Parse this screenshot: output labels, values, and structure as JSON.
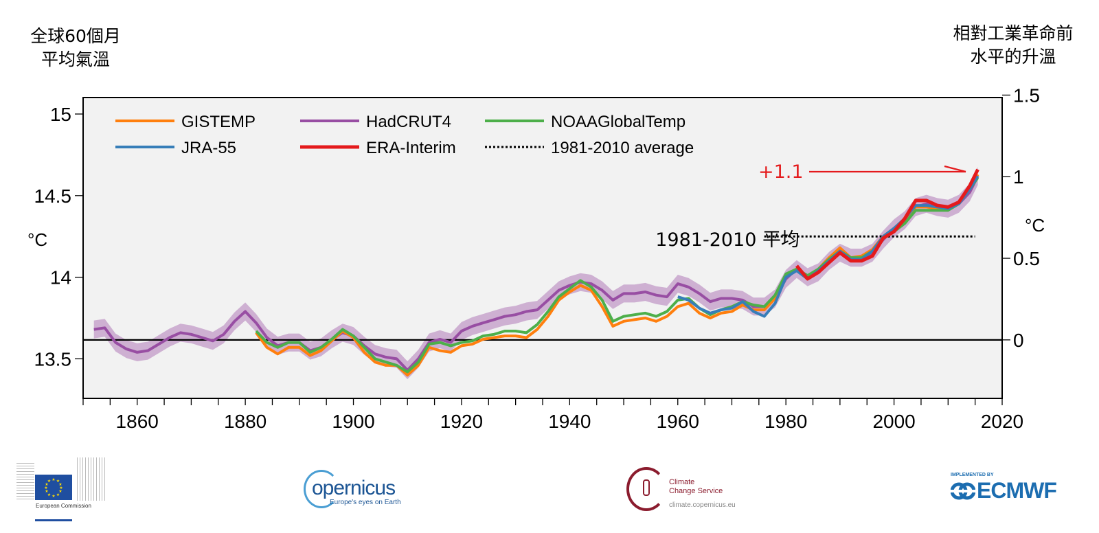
{
  "titles": {
    "left_line1": "全球60個月",
    "left_line2": "平均氣溫",
    "right_line1": "相對工業革命前",
    "right_line2": "水平的升溫"
  },
  "chart_data": {
    "type": "line",
    "title": "",
    "xlabel": "",
    "ylabel_left": "°C",
    "ylabel_right": "°C",
    "xlim": [
      1850,
      2020
    ],
    "ylim_left": [
      13.3,
      15.1
    ],
    "ylim_right_anomaly": [
      -0.3,
      1.5
    ],
    "right_axis_zero_at_absolute": 13.616,
    "x_ticks": [
      1860,
      1880,
      1900,
      1920,
      1940,
      1960,
      1980,
      2000,
      2020
    ],
    "x_minor_step": 5,
    "y_left_ticks": [
      "13.5",
      "14",
      "14.5",
      "15"
    ],
    "y_right_ticks": [
      "0",
      "0.5",
      "1",
      "1.5"
    ],
    "y_left_tick_values": [
      13.5,
      14.0,
      14.5,
      15.0
    ],
    "y_right_tick_values": [
      0,
      0.5,
      1.0,
      1.5
    ],
    "grid": false,
    "background": "#f2f2f2",
    "legend_position": "top-left",
    "legend": [
      {
        "name": "GISTEMP",
        "color": "#ff7f0e",
        "style": "solid"
      },
      {
        "name": "HadCRUT4",
        "color": "#984ea3",
        "style": "solid"
      },
      {
        "name": "NOAAGlobalTemp",
        "color": "#4daf4a",
        "style": "solid"
      },
      {
        "name": "JRA-55",
        "color": "#377eb8",
        "style": "solid"
      },
      {
        "name": "ERA-Interim",
        "color": "#e41a1c",
        "style": "solid"
      },
      {
        "name": "1981-2010 average",
        "color": "#000000",
        "style": "dotted"
      }
    ],
    "annotations": {
      "warming_label": "+1.1",
      "warming_color": "#e41a1c",
      "average_label": "1981-2010 平均",
      "average_value_absolute": 14.25,
      "average_span": [
        1976,
        2015
      ]
    },
    "series": [
      {
        "name": "HadCRUT4",
        "color": "#984ea3",
        "uncertainty": 0.055,
        "x": [
          1852,
          1854,
          1856,
          1858,
          1860,
          1862,
          1864,
          1866,
          1868,
          1870,
          1872,
          1874,
          1876,
          1878,
          1880,
          1882,
          1884,
          1886,
          1888,
          1890,
          1892,
          1894,
          1896,
          1898,
          1900,
          1902,
          1904,
          1906,
          1908,
          1910,
          1912,
          1914,
          1916,
          1918,
          1920,
          1922,
          1924,
          1926,
          1928,
          1930,
          1932,
          1934,
          1936,
          1938,
          1940,
          1942,
          1944,
          1946,
          1948,
          1950,
          1952,
          1954,
          1956,
          1958,
          1960,
          1962,
          1964,
          1966,
          1968,
          1970,
          1972,
          1974,
          1976,
          1978,
          1980,
          1982,
          1984,
          1986,
          1988,
          1990,
          1992,
          1994,
          1996,
          1998,
          2000,
          2002,
          2004,
          2006,
          2008,
          2010,
          2012,
          2014,
          2015.5
        ],
        "values": [
          13.68,
          13.69,
          13.6,
          13.56,
          13.54,
          13.55,
          13.59,
          13.63,
          13.66,
          13.65,
          13.63,
          13.61,
          13.65,
          13.73,
          13.79,
          13.72,
          13.63,
          13.58,
          13.6,
          13.6,
          13.55,
          13.57,
          13.62,
          13.66,
          13.64,
          13.58,
          13.53,
          13.51,
          13.5,
          13.43,
          13.5,
          13.6,
          13.62,
          13.6,
          13.67,
          13.7,
          13.72,
          13.74,
          13.76,
          13.77,
          13.79,
          13.8,
          13.86,
          13.92,
          13.95,
          13.97,
          13.96,
          13.92,
          13.86,
          13.9,
          13.9,
          13.91,
          13.89,
          13.88,
          13.96,
          13.94,
          13.9,
          13.85,
          13.87,
          13.87,
          13.86,
          13.82,
          13.82,
          13.87,
          13.99,
          14.05,
          14.0,
          14.03,
          14.1,
          14.15,
          14.12,
          14.12,
          14.15,
          14.23,
          14.3,
          14.35,
          14.43,
          14.45,
          14.43,
          14.42,
          14.45,
          14.52,
          14.62
        ]
      },
      {
        "name": "GISTEMP",
        "color": "#ff7f0e",
        "x": [
          1882,
          1884,
          1886,
          1888,
          1890,
          1892,
          1894,
          1896,
          1898,
          1900,
          1902,
          1904,
          1906,
          1908,
          1910,
          1912,
          1914,
          1916,
          1918,
          1920,
          1922,
          1924,
          1926,
          1928,
          1930,
          1932,
          1934,
          1936,
          1938,
          1940,
          1942,
          1944,
          1946,
          1948,
          1950,
          1952,
          1954,
          1956,
          1958,
          1960,
          1962,
          1964,
          1966,
          1968,
          1970,
          1972,
          1974,
          1976,
          1978,
          1980,
          1982,
          1984,
          1986,
          1988,
          1990,
          1992,
          1994,
          1996,
          1998,
          2000,
          2002,
          2004,
          2006,
          2008,
          2010,
          2012,
          2014,
          2015.5
        ],
        "values": [
          13.66,
          13.57,
          13.53,
          13.57,
          13.57,
          13.52,
          13.55,
          13.61,
          13.67,
          13.63,
          13.54,
          13.48,
          13.46,
          13.46,
          13.4,
          13.46,
          13.57,
          13.55,
          13.54,
          13.58,
          13.59,
          13.62,
          13.63,
          13.64,
          13.64,
          13.63,
          13.68,
          13.76,
          13.86,
          13.91,
          13.95,
          13.92,
          13.82,
          13.7,
          13.73,
          13.74,
          13.75,
          13.73,
          13.76,
          13.82,
          13.84,
          13.78,
          13.75,
          13.78,
          13.79,
          13.83,
          13.8,
          13.8,
          13.87,
          14.01,
          14.05,
          14.0,
          14.05,
          14.12,
          14.18,
          14.12,
          14.13,
          14.17,
          14.25,
          14.3,
          14.36,
          14.43,
          14.43,
          14.42,
          14.42,
          14.45,
          14.55,
          14.63
        ]
      },
      {
        "name": "NOAAGlobalTemp",
        "color": "#4daf4a",
        "x": [
          1882,
          1884,
          1886,
          1888,
          1890,
          1892,
          1894,
          1896,
          1898,
          1900,
          1902,
          1904,
          1906,
          1908,
          1910,
          1912,
          1914,
          1916,
          1918,
          1920,
          1922,
          1924,
          1926,
          1928,
          1930,
          1932,
          1934,
          1936,
          1938,
          1940,
          1942,
          1944,
          1946,
          1948,
          1950,
          1952,
          1954,
          1956,
          1958,
          1960,
          1962,
          1964,
          1966,
          1968,
          1970,
          1972,
          1974,
          1976,
          1978,
          1980,
          1982,
          1984,
          1986,
          1988,
          1990,
          1992,
          1994,
          1996,
          1998,
          2000,
          2002,
          2004,
          2006,
          2008,
          2010,
          2012,
          2014,
          2015.5
        ],
        "values": [
          13.67,
          13.6,
          13.57,
          13.6,
          13.6,
          13.54,
          13.57,
          13.62,
          13.68,
          13.64,
          13.57,
          13.5,
          13.48,
          13.46,
          13.42,
          13.48,
          13.59,
          13.6,
          13.58,
          13.6,
          13.61,
          13.64,
          13.65,
          13.67,
          13.67,
          13.66,
          13.71,
          13.79,
          13.88,
          13.93,
          13.98,
          13.94,
          13.86,
          13.73,
          13.76,
          13.77,
          13.78,
          13.76,
          13.79,
          13.86,
          13.87,
          13.81,
          13.77,
          13.8,
          13.82,
          13.85,
          13.83,
          13.82,
          13.89,
          14.02,
          14.05,
          14.01,
          14.05,
          14.11,
          14.16,
          14.12,
          14.12,
          14.16,
          14.24,
          14.28,
          14.33,
          14.41,
          14.41,
          14.41,
          14.41,
          14.45,
          14.54,
          14.61
        ]
      },
      {
        "name": "JRA-55",
        "color": "#377eb8",
        "x": [
          1960,
          1962,
          1964,
          1966,
          1968,
          1970,
          1972,
          1974,
          1976,
          1978,
          1980,
          1982,
          1984,
          1986,
          1988,
          1990,
          1992,
          1994,
          1996,
          1998,
          2000,
          2002,
          2004,
          2006,
          2008,
          2010,
          2012,
          2014,
          2015.5
        ],
        "values": [
          13.88,
          13.86,
          13.81,
          13.78,
          13.8,
          13.81,
          13.85,
          13.79,
          13.76,
          13.84,
          14.0,
          14.04,
          13.99,
          14.04,
          14.1,
          14.16,
          14.11,
          14.11,
          14.16,
          14.25,
          14.3,
          14.36,
          14.44,
          14.44,
          14.43,
          14.42,
          14.45,
          14.54,
          14.62
        ]
      },
      {
        "name": "ERA-Interim",
        "color": "#e41a1c",
        "x": [
          1982,
          1984,
          1986,
          1988,
          1990,
          1992,
          1994,
          1996,
          1998,
          2000,
          2002,
          2004,
          2006,
          2008,
          2010,
          2012,
          2014,
          2015.5
        ],
        "values": [
          14.07,
          13.99,
          14.03,
          14.09,
          14.15,
          14.1,
          14.1,
          14.13,
          14.24,
          14.28,
          14.36,
          14.47,
          14.47,
          14.44,
          14.43,
          14.46,
          14.56,
          14.66
        ]
      }
    ]
  },
  "logos": {
    "european_commission": "European Commission",
    "copernicus": "opernicus",
    "copernicus_tagline": "Europe's eyes on Earth",
    "c3s_line1": "Climate",
    "c3s_line2": "Change Service",
    "c3s_url": "climate.copernicus.eu",
    "ecmwf_implemented": "IMPLEMENTED BY",
    "ecmwf": "ECMWF"
  }
}
